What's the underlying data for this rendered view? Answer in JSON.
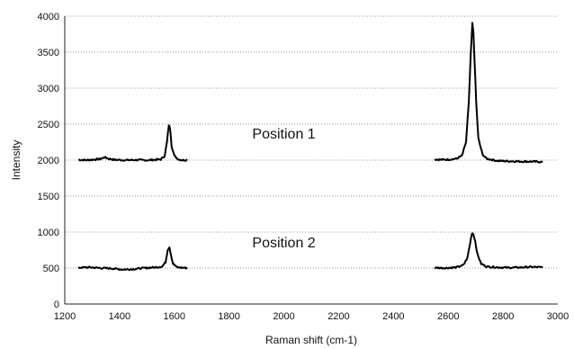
{
  "chart_data": {
    "type": "line",
    "title": "",
    "xlabel": "Raman shift (cm-1)",
    "ylabel": "Intensity",
    "xlim": [
      1200,
      3000
    ],
    "ylim": [
      0,
      4000
    ],
    "x_ticks": [
      1200,
      1400,
      1600,
      1800,
      2000,
      2200,
      2400,
      2600,
      2800,
      3000
    ],
    "y_ticks": [
      0,
      500,
      1000,
      1500,
      2000,
      2500,
      3000,
      3500,
      4000
    ],
    "grid": "horizontal dotted",
    "legend": "none",
    "annotations": [
      {
        "text": "Position 1",
        "x": 2000,
        "y": 2300
      },
      {
        "text": "Position 2",
        "x": 2000,
        "y": 790
      }
    ],
    "series": [
      {
        "x": [
          1250,
          1280,
          1310,
          1330,
          1345,
          1360,
          1380,
          1420,
          1460,
          1500,
          1530,
          1550,
          1565,
          1573,
          1580,
          1585,
          1590,
          1600,
          1615,
          1630,
          1648
        ],
        "values": [
          2005,
          2000,
          2008,
          2015,
          2040,
          2020,
          2005,
          2000,
          2002,
          1998,
          2005,
          2010,
          2060,
          2250,
          2490,
          2430,
          2200,
          2060,
          2010,
          2000,
          2002
        ]
      },
      {
        "x": [
          2550,
          2580,
          2610,
          2630,
          2650,
          2665,
          2675,
          2682,
          2688,
          2692,
          2696,
          2702,
          2710,
          2725,
          2740,
          2780,
          2820,
          2860,
          2900,
          2945
        ],
        "values": [
          2010,
          2005,
          2010,
          2020,
          2060,
          2250,
          2800,
          3450,
          3900,
          3780,
          3400,
          2800,
          2300,
          2080,
          2020,
          1990,
          1985,
          1982,
          1980,
          1975
        ]
      },
      {
        "x": [
          1250,
          1290,
          1330,
          1370,
          1410,
          1450,
          1490,
          1530,
          1555,
          1568,
          1576,
          1582,
          1587,
          1595,
          1610,
          1630,
          1648
        ],
        "values": [
          505,
          510,
          500,
          495,
          480,
          485,
          500,
          510,
          520,
          580,
          760,
          790,
          700,
          560,
          510,
          505,
          500
        ]
      },
      {
        "x": [
          2550,
          2590,
          2630,
          2655,
          2670,
          2680,
          2687,
          2692,
          2698,
          2706,
          2720,
          2740,
          2780,
          2820,
          2860,
          2900,
          2945
        ],
        "values": [
          505,
          500,
          510,
          540,
          640,
          850,
          990,
          970,
          880,
          700,
          560,
          520,
          510,
          505,
          508,
          515,
          510
        ]
      }
    ]
  }
}
